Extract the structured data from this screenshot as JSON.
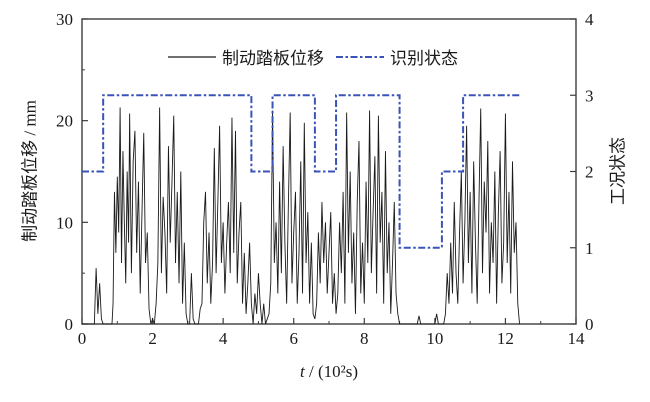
{
  "chart_data": {
    "type": "line",
    "title": "",
    "xlabel_t": "t",
    "xlabel_rest": " / (10²s)",
    "ylabel_left": "制动踏板位移 / mm",
    "ylabel_right": "工况状态",
    "xlim": [
      0,
      14
    ],
    "ylim_left": [
      0,
      30
    ],
    "ylim_right": [
      0,
      4
    ],
    "xticks": [
      0,
      2,
      4,
      6,
      8,
      10,
      12,
      14
    ],
    "xticks_minor": [
      1,
      3,
      5,
      7,
      9,
      11,
      13
    ],
    "yticks_left": [
      0,
      10,
      20,
      30
    ],
    "yticks_left_minor": [
      5,
      15,
      25
    ],
    "yticks_right": [
      0,
      1,
      2,
      3,
      4
    ],
    "grid": false,
    "legend_position": "top-center-inside",
    "legend": [
      {
        "label": "制动踏板位移",
        "color": "#1a1a1a",
        "style": "solid"
      },
      {
        "label": "识别状态",
        "color": "#3a53b8",
        "style": "dash-dot"
      }
    ],
    "axis_color": "#3d3d3d",
    "series": [
      {
        "name": "制动踏板位移",
        "axis": "left",
        "color": "#1a1a1a",
        "style": "solid",
        "points": [
          [
            0,
            0
          ],
          [
            0.3,
            0
          ],
          [
            0.35,
            0
          ],
          [
            0.4,
            5.5
          ],
          [
            0.45,
            1
          ],
          [
            0.5,
            4
          ],
          [
            0.55,
            0.5
          ],
          [
            0.6,
            0
          ],
          [
            0.85,
            0
          ],
          [
            0.88,
            2
          ],
          [
            0.92,
            13
          ],
          [
            0.96,
            7
          ],
          [
            1.0,
            14.5
          ],
          [
            1.04,
            9
          ],
          [
            1.08,
            21.3
          ],
          [
            1.12,
            6
          ],
          [
            1.16,
            17
          ],
          [
            1.2,
            10
          ],
          [
            1.24,
            4
          ],
          [
            1.28,
            15
          ],
          [
            1.32,
            8
          ],
          [
            1.35,
            20.7
          ],
          [
            1.4,
            5
          ],
          [
            1.45,
            16
          ],
          [
            1.5,
            19
          ],
          [
            1.55,
            7
          ],
          [
            1.6,
            14
          ],
          [
            1.65,
            3
          ],
          [
            1.7,
            11
          ],
          [
            1.75,
            18.8
          ],
          [
            1.8,
            6
          ],
          [
            1.85,
            9
          ],
          [
            1.9,
            1.5
          ],
          [
            1.95,
            0
          ],
          [
            2.0,
            0.5
          ],
          [
            2.05,
            0
          ],
          [
            2.1,
            2
          ],
          [
            2.15,
            6
          ],
          [
            2.2,
            21.3
          ],
          [
            2.25,
            5
          ],
          [
            2.3,
            12.5
          ],
          [
            2.35,
            9
          ],
          [
            2.4,
            3
          ],
          [
            2.45,
            17.5
          ],
          [
            2.5,
            8
          ],
          [
            2.55,
            14
          ],
          [
            2.6,
            20.5
          ],
          [
            2.65,
            6
          ],
          [
            2.7,
            13
          ],
          [
            2.75,
            4
          ],
          [
            2.8,
            15
          ],
          [
            2.85,
            2
          ],
          [
            2.9,
            8
          ],
          [
            2.95,
            1
          ],
          [
            3.0,
            0
          ],
          [
            3.05,
            0
          ],
          [
            3.1,
            5
          ],
          [
            3.15,
            0.5
          ],
          [
            3.2,
            0
          ],
          [
            3.3,
            0
          ],
          [
            3.35,
            1.5
          ],
          [
            3.4,
            2
          ],
          [
            3.45,
            10
          ],
          [
            3.5,
            13
          ],
          [
            3.55,
            4
          ],
          [
            3.6,
            9
          ],
          [
            3.65,
            2
          ],
          [
            3.7,
            6
          ],
          [
            3.75,
            17.3
          ],
          [
            3.8,
            5
          ],
          [
            3.85,
            12
          ],
          [
            3.9,
            19.5
          ],
          [
            3.95,
            6
          ],
          [
            4.0,
            10
          ],
          [
            4.05,
            3
          ],
          [
            4.1,
            8
          ],
          [
            4.15,
            12
          ],
          [
            4.2,
            5
          ],
          [
            4.25,
            20.3
          ],
          [
            4.3,
            7
          ],
          [
            4.35,
            19
          ],
          [
            4.4,
            4
          ],
          [
            4.45,
            9
          ],
          [
            4.5,
            12
          ],
          [
            4.55,
            2
          ],
          [
            4.6,
            7
          ],
          [
            4.65,
            1
          ],
          [
            4.7,
            4
          ],
          [
            4.75,
            8
          ],
          [
            4.8,
            2
          ],
          [
            4.85,
            0
          ],
          [
            4.9,
            3
          ],
          [
            4.95,
            1
          ],
          [
            5.0,
            5
          ],
          [
            5.05,
            2
          ],
          [
            5.1,
            0
          ],
          [
            5.15,
            2
          ],
          [
            5.2,
            0
          ],
          [
            5.25,
            0.5
          ],
          [
            5.3,
            1
          ],
          [
            5.35,
            4
          ],
          [
            5.4,
            21
          ],
          [
            5.45,
            6
          ],
          [
            5.5,
            10
          ],
          [
            5.55,
            3
          ],
          [
            5.6,
            14
          ],
          [
            5.65,
            5
          ],
          [
            5.7,
            17.5
          ],
          [
            5.75,
            8
          ],
          [
            5.8,
            2
          ],
          [
            5.85,
            12
          ],
          [
            5.9,
            20.8
          ],
          [
            5.95,
            4
          ],
          [
            6.0,
            9
          ],
          [
            6.05,
            13
          ],
          [
            6.1,
            2
          ],
          [
            6.15,
            7
          ],
          [
            6.2,
            16
          ],
          [
            6.25,
            3
          ],
          [
            6.3,
            19.8
          ],
          [
            6.35,
            6
          ],
          [
            6.4,
            11
          ],
          [
            6.45,
            2
          ],
          [
            6.5,
            8
          ],
          [
            6.55,
            1
          ],
          [
            6.6,
            0.5
          ],
          [
            6.65,
            2
          ],
          [
            6.7,
            9
          ],
          [
            6.75,
            4
          ],
          [
            6.8,
            12
          ],
          [
            6.85,
            6
          ],
          [
            6.9,
            10
          ],
          [
            6.95,
            3
          ],
          [
            7.0,
            7
          ],
          [
            7.05,
            11
          ],
          [
            7.1,
            2
          ],
          [
            7.15,
            5
          ],
          [
            7.2,
            1
          ],
          [
            7.25,
            3
          ],
          [
            7.3,
            10
          ],
          [
            7.35,
            5
          ],
          [
            7.4,
            13
          ],
          [
            7.45,
            2
          ],
          [
            7.5,
            20.8
          ],
          [
            7.55,
            7
          ],
          [
            7.6,
            15
          ],
          [
            7.65,
            4
          ],
          [
            7.7,
            9
          ],
          [
            7.75,
            1
          ],
          [
            7.8,
            12
          ],
          [
            7.85,
            18
          ],
          [
            7.9,
            3
          ],
          [
            7.95,
            8
          ],
          [
            8.0,
            2
          ],
          [
            8.05,
            14
          ],
          [
            8.1,
            6
          ],
          [
            8.15,
            21
          ],
          [
            8.2,
            5
          ],
          [
            8.25,
            11
          ],
          [
            8.3,
            16.5
          ],
          [
            8.35,
            3
          ],
          [
            8.4,
            20.5
          ],
          [
            8.45,
            8
          ],
          [
            8.5,
            13
          ],
          [
            8.55,
            2
          ],
          [
            8.6,
            17
          ],
          [
            8.65,
            5
          ],
          [
            8.7,
            10
          ],
          [
            8.75,
            1
          ],
          [
            8.8,
            6
          ],
          [
            8.85,
            12
          ],
          [
            8.9,
            3
          ],
          [
            8.95,
            1
          ],
          [
            9.0,
            0
          ],
          [
            9.3,
            0
          ],
          [
            9.5,
            0
          ],
          [
            9.55,
            0.8
          ],
          [
            9.6,
            0
          ],
          [
            10.0,
            0
          ],
          [
            10.05,
            1
          ],
          [
            10.1,
            0
          ],
          [
            10.25,
            0
          ],
          [
            10.3,
            1
          ],
          [
            10.35,
            5
          ],
          [
            10.4,
            2
          ],
          [
            10.45,
            8
          ],
          [
            10.5,
            3
          ],
          [
            10.55,
            12
          ],
          [
            10.6,
            5
          ],
          [
            10.65,
            2
          ],
          [
            10.7,
            9
          ],
          [
            10.75,
            15
          ],
          [
            10.8,
            4
          ],
          [
            10.85,
            10
          ],
          [
            10.9,
            19.5
          ],
          [
            10.95,
            6
          ],
          [
            11.0,
            13
          ],
          [
            11.05,
            3
          ],
          [
            11.1,
            16
          ],
          [
            11.15,
            8
          ],
          [
            11.2,
            2
          ],
          [
            11.25,
            12
          ],
          [
            11.3,
            21.2
          ],
          [
            11.35,
            5
          ],
          [
            11.4,
            14
          ],
          [
            11.45,
            9
          ],
          [
            11.5,
            18
          ],
          [
            11.55,
            3
          ],
          [
            11.6,
            10
          ],
          [
            11.65,
            6
          ],
          [
            11.7,
            15
          ],
          [
            11.75,
            2
          ],
          [
            11.8,
            11
          ],
          [
            11.85,
            17
          ],
          [
            11.9,
            4
          ],
          [
            11.95,
            8
          ],
          [
            12.0,
            20.7
          ],
          [
            12.05,
            6
          ],
          [
            12.1,
            13
          ],
          [
            12.15,
            3
          ],
          [
            12.2,
            16
          ],
          [
            12.25,
            7
          ],
          [
            12.3,
            10
          ],
          [
            12.35,
            2
          ],
          [
            12.4,
            0
          ]
        ]
      },
      {
        "name": "识别状态",
        "axis": "right",
        "color": "#3a53b8",
        "style": "dash-dot",
        "step_segments": [
          {
            "x0": 0,
            "x1": 0.6,
            "level": 2
          },
          {
            "x0": 0.6,
            "x1": 4.8,
            "level": 3
          },
          {
            "x0": 4.8,
            "x1": 5.4,
            "level": 2
          },
          {
            "x0": 5.4,
            "x1": 6.6,
            "level": 3
          },
          {
            "x0": 6.6,
            "x1": 7.2,
            "level": 2
          },
          {
            "x0": 7.2,
            "x1": 9.0,
            "level": 3
          },
          {
            "x0": 9.0,
            "x1": 10.2,
            "level": 1
          },
          {
            "x0": 10.2,
            "x1": 10.8,
            "level": 2
          },
          {
            "x0": 10.8,
            "x1": 12.4,
            "level": 3
          }
        ]
      }
    ]
  }
}
